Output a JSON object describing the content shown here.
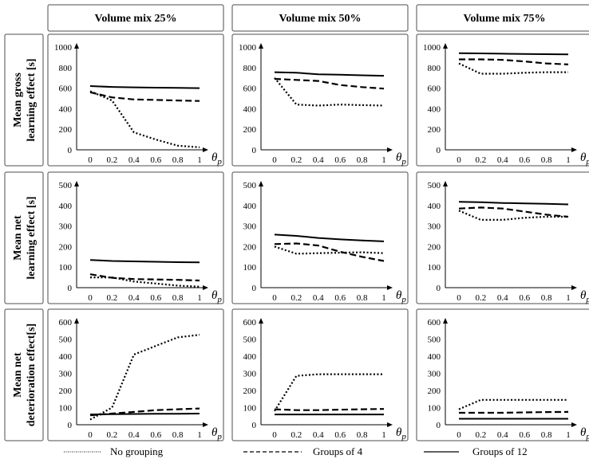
{
  "figure": {
    "column_titles": [
      "Volume mix 25%",
      "Volume mix 50%",
      "Volume mix 75%"
    ],
    "row_titles": [
      [
        "Mean gross",
        "learning effect [s]"
      ],
      [
        "Mean net",
        "learning effect [s]"
      ],
      [
        "Mean net",
        "deterioration effect[s]"
      ]
    ],
    "x_axis_symbol": "θ",
    "x_axis_subscript": "p"
  },
  "legend": [
    {
      "label": "No grouping",
      "style": "dotted"
    },
    {
      "label": "Groups of 4",
      "style": "dashed"
    },
    {
      "label": "Groups of 12",
      "style": "solid"
    }
  ],
  "colors": {
    "line": "#000000",
    "frame": "#4d4d4d",
    "background": "#ffffff"
  },
  "chart_data": [
    {
      "type": "line",
      "row": 0,
      "col": 0,
      "x": [
        0,
        0.2,
        0.4,
        0.6,
        0.8,
        1
      ],
      "xticks": [
        "0",
        "0.2",
        "0.4",
        "0.6",
        "0.8",
        "1"
      ],
      "ylim": [
        0,
        1000
      ],
      "yticks": [
        0,
        200,
        400,
        600,
        800,
        1000
      ],
      "series": [
        {
          "name": "No grouping",
          "values": [
            570,
            480,
            170,
            100,
            40,
            25
          ]
        },
        {
          "name": "Groups of 4",
          "values": [
            560,
            510,
            490,
            485,
            480,
            475
          ]
        },
        {
          "name": "Groups of 12",
          "values": [
            620,
            612,
            608,
            605,
            603,
            600
          ]
        }
      ]
    },
    {
      "type": "line",
      "row": 0,
      "col": 1,
      "x": [
        0,
        0.2,
        0.4,
        0.6,
        0.8,
        1
      ],
      "xticks": [
        "0",
        "0.2",
        "0.4",
        "0.6",
        "0.8",
        "1"
      ],
      "ylim": [
        0,
        1000
      ],
      "yticks": [
        0,
        200,
        400,
        600,
        800,
        1000
      ],
      "series": [
        {
          "name": "No grouping",
          "values": [
            700,
            440,
            430,
            440,
            435,
            430
          ]
        },
        {
          "name": "Groups of 4",
          "values": [
            690,
            680,
            670,
            630,
            610,
            595
          ]
        },
        {
          "name": "Groups of 12",
          "values": [
            755,
            750,
            735,
            730,
            725,
            720
          ]
        }
      ]
    },
    {
      "type": "line",
      "row": 0,
      "col": 2,
      "x": [
        0,
        0.2,
        0.4,
        0.6,
        0.8,
        1
      ],
      "xticks": [
        "0",
        "0.2",
        "0.4",
        "0.6",
        "0.8",
        "1"
      ],
      "ylim": [
        0,
        1000
      ],
      "yticks": [
        0,
        200,
        400,
        600,
        800,
        1000
      ],
      "series": [
        {
          "name": "No grouping",
          "values": [
            840,
            740,
            740,
            750,
            755,
            755
          ]
        },
        {
          "name": "Groups of 4",
          "values": [
            880,
            880,
            875,
            860,
            840,
            830
          ]
        },
        {
          "name": "Groups of 12",
          "values": [
            940,
            938,
            935,
            932,
            930,
            928
          ]
        }
      ]
    },
    {
      "type": "line",
      "row": 1,
      "col": 0,
      "x": [
        0,
        0.2,
        0.4,
        0.6,
        0.8,
        1
      ],
      "xticks": [
        "0",
        "0.2",
        "0.4",
        "0.6",
        "0.8",
        "1"
      ],
      "ylim": [
        0,
        500
      ],
      "yticks": [
        0,
        100,
        200,
        300,
        400,
        500
      ],
      "series": [
        {
          "name": "No grouping",
          "values": [
            50,
            50,
            30,
            20,
            10,
            5
          ]
        },
        {
          "name": "Groups of 4",
          "values": [
            65,
            48,
            42,
            40,
            38,
            35
          ]
        },
        {
          "name": "Groups of 12",
          "values": [
            135,
            130,
            128,
            126,
            124,
            123
          ]
        }
      ]
    },
    {
      "type": "line",
      "row": 1,
      "col": 1,
      "x": [
        0,
        0.2,
        0.4,
        0.6,
        0.8,
        1
      ],
      "xticks": [
        "0",
        "0.2",
        "0.4",
        "0.6",
        "0.8",
        "1"
      ],
      "ylim": [
        0,
        500
      ],
      "yticks": [
        0,
        100,
        200,
        300,
        400,
        500
      ],
      "series": [
        {
          "name": "No grouping",
          "values": [
            200,
            165,
            168,
            170,
            172,
            168
          ]
        },
        {
          "name": "Groups of 4",
          "values": [
            212,
            215,
            205,
            175,
            150,
            130
          ]
        },
        {
          "name": "Groups of 12",
          "values": [
            258,
            252,
            242,
            235,
            230,
            225
          ]
        }
      ]
    },
    {
      "type": "line",
      "row": 1,
      "col": 2,
      "x": [
        0,
        0.2,
        0.4,
        0.6,
        0.8,
        1
      ],
      "xticks": [
        "0",
        "0.2",
        "0.4",
        "0.6",
        "0.8",
        "1"
      ],
      "ylim": [
        0,
        500
      ],
      "yticks": [
        0,
        100,
        200,
        300,
        400,
        500
      ],
      "series": [
        {
          "name": "No grouping",
          "values": [
            375,
            330,
            330,
            340,
            345,
            345
          ]
        },
        {
          "name": "Groups of 4",
          "values": [
            385,
            390,
            385,
            370,
            355,
            345
          ]
        },
        {
          "name": "Groups of 12",
          "values": [
            418,
            416,
            412,
            410,
            408,
            405
          ]
        }
      ]
    },
    {
      "type": "line",
      "row": 2,
      "col": 0,
      "x": [
        0,
        0.2,
        0.4,
        0.6,
        0.8,
        1
      ],
      "xticks": [
        "0",
        "0.2",
        "0.4",
        "0.6",
        "0.8",
        "1"
      ],
      "ylim": [
        0,
        600
      ],
      "yticks": [
        0,
        100,
        200,
        300,
        400,
        500,
        600
      ],
      "series": [
        {
          "name": "No grouping",
          "values": [
            30,
            100,
            410,
            460,
            510,
            525
          ]
        },
        {
          "name": "Groups of 4",
          "values": [
            55,
            65,
            75,
            85,
            90,
            95
          ]
        },
        {
          "name": "Groups of 12",
          "values": [
            60,
            62,
            63,
            64,
            64,
            65
          ]
        }
      ]
    },
    {
      "type": "line",
      "row": 2,
      "col": 1,
      "x": [
        0,
        0.2,
        0.4,
        0.6,
        0.8,
        1
      ],
      "xticks": [
        "0",
        "0.2",
        "0.4",
        "0.6",
        "0.8",
        "1"
      ],
      "ylim": [
        0,
        600
      ],
      "yticks": [
        0,
        100,
        200,
        300,
        400,
        500,
        600
      ],
      "series": [
        {
          "name": "No grouping",
          "values": [
            80,
            285,
            295,
            295,
            295,
            295
          ]
        },
        {
          "name": "Groups of 4",
          "values": [
            90,
            85,
            85,
            88,
            90,
            92
          ]
        },
        {
          "name": "Groups of 12",
          "values": [
            60,
            60,
            60,
            60,
            60,
            60
          ]
        }
      ]
    },
    {
      "type": "line",
      "row": 2,
      "col": 2,
      "x": [
        0,
        0.2,
        0.4,
        0.6,
        0.8,
        1
      ],
      "xticks": [
        "0",
        "0.2",
        "0.4",
        "0.6",
        "0.8",
        "1"
      ],
      "ylim": [
        0,
        600
      ],
      "yticks": [
        0,
        100,
        200,
        300,
        400,
        500,
        600
      ],
      "series": [
        {
          "name": "No grouping",
          "values": [
            90,
            145,
            145,
            145,
            145,
            145
          ]
        },
        {
          "name": "Groups of 4",
          "values": [
            70,
            70,
            70,
            72,
            74,
            75
          ]
        },
        {
          "name": "Groups of 12",
          "values": [
            35,
            35,
            35,
            35,
            35,
            35
          ]
        }
      ]
    }
  ]
}
